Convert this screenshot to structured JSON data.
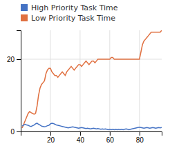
{
  "chart_data": {
    "type": "line",
    "x": [
      1,
      2,
      3,
      4,
      5,
      6,
      7,
      8,
      9,
      10,
      11,
      12,
      13,
      14,
      15,
      16,
      17,
      18,
      19,
      20,
      21,
      22,
      23,
      24,
      25,
      26,
      27,
      28,
      29,
      30,
      31,
      32,
      33,
      34,
      35,
      36,
      37,
      38,
      39,
      40,
      41,
      42,
      43,
      44,
      45,
      46,
      47,
      48,
      49,
      50,
      51,
      52,
      53,
      54,
      55,
      56,
      57,
      58,
      59,
      60,
      61,
      62,
      63,
      64,
      65,
      66,
      67,
      68,
      69,
      70,
      71,
      72,
      73,
      74,
      75,
      76,
      77,
      78,
      79,
      80,
      81,
      82,
      83,
      84,
      85,
      86,
      87,
      88,
      89,
      90,
      91,
      92,
      93,
      94,
      95
    ],
    "series": [
      {
        "name": "High Priority Task Time",
        "color": "#4472c4",
        "values": [
          1.5,
          1.8,
          2.0,
          1.8,
          1.7,
          1.5,
          1.4,
          1.6,
          1.8,
          2.1,
          2.3,
          2.0,
          1.8,
          1.5,
          1.4,
          1.3,
          1.4,
          1.6,
          1.7,
          2.1,
          2.3,
          2.2,
          2.0,
          1.8,
          1.7,
          1.6,
          1.5,
          1.4,
          1.3,
          1.2,
          1.1,
          1.0,
          1.1,
          1.2,
          1.3,
          1.2,
          1.1,
          1.0,
          0.9,
          1.0,
          1.1,
          1.0,
          0.9,
          0.8,
          0.9,
          0.8,
          0.7,
          0.8,
          0.9,
          0.8,
          0.7,
          0.8,
          0.7,
          0.6,
          0.7,
          0.6,
          0.7,
          0.6,
          0.5,
          0.6,
          0.5,
          0.6,
          0.5,
          0.6,
          0.5,
          0.6,
          0.5,
          0.6,
          0.5,
          0.6,
          0.7,
          0.6,
          0.5,
          0.6,
          0.7,
          0.8,
          0.9,
          1.0,
          1.1,
          1.2,
          1.1,
          1.0,
          0.9,
          1.0,
          1.1,
          1.0,
          0.9,
          1.0,
          1.1,
          1.0,
          0.9,
          1.0,
          1.1,
          1.0,
          1.1
        ]
      },
      {
        "name": "Low Priority Task Time",
        "color": "#e07040",
        "values": [
          1.0,
          2.0,
          3.0,
          4.0,
          5.0,
          5.5,
          5.2,
          5.0,
          4.8,
          5.0,
          7.0,
          10.0,
          12.0,
          13.0,
          13.5,
          14.0,
          16.0,
          17.0,
          17.5,
          17.5,
          16.5,
          16.0,
          15.5,
          15.5,
          15.0,
          15.5,
          16.0,
          16.5,
          16.0,
          15.5,
          16.5,
          17.0,
          17.5,
          18.0,
          17.5,
          17.0,
          17.5,
          18.0,
          18.5,
          18.5,
          18.0,
          18.5,
          19.0,
          19.5,
          19.0,
          18.5,
          19.0,
          19.5,
          19.5,
          19.0,
          19.5,
          20.0,
          20.0,
          20.0,
          20.0,
          20.0,
          20.0,
          20.0,
          20.0,
          20.0,
          20.5,
          20.5,
          20.0,
          20.0,
          20.0,
          20.0,
          20.0,
          20.0,
          20.0,
          20.0,
          20.0,
          20.0,
          20.0,
          20.0,
          20.0,
          20.0,
          20.0,
          20.0,
          20.0,
          20.0,
          22.0,
          24.0,
          25.0,
          25.5,
          26.0,
          26.5,
          27.0,
          27.5,
          27.5,
          27.5,
          27.5,
          27.5,
          27.5,
          27.5,
          28.0
        ]
      }
    ],
    "xlim": [
      0,
      95
    ],
    "xticks": [
      20,
      40,
      60,
      80
    ],
    "ylim": [
      0,
      28
    ],
    "yticks": [
      0,
      20
    ],
    "grid": true,
    "legend": "upper left"
  }
}
